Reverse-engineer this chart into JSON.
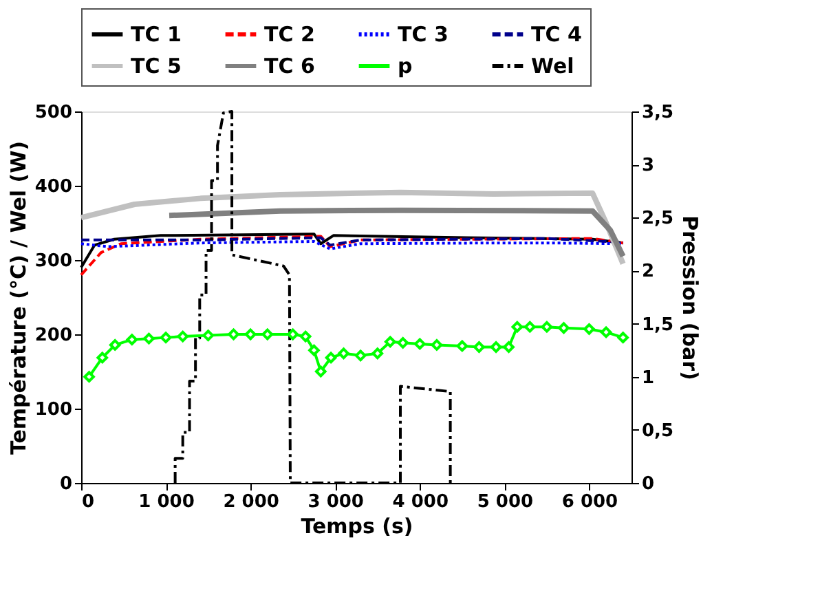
{
  "chart_data": {
    "type": "line",
    "xlabel": "Temps (s)",
    "ylabel": "Température (°C) / Wel (W)",
    "y2label": "Pression (bar)",
    "xlim": [
      0,
      6500
    ],
    "xticks": [
      0,
      {
        "value": 1000,
        "label": "1 000"
      },
      {
        "value": 2000,
        "label": "2 000"
      },
      {
        "value": 3000,
        "label": "3 000"
      },
      {
        "value": 4000,
        "label": "4 000"
      },
      {
        "value": 5000,
        "label": "5 000"
      },
      {
        "value": 6000,
        "label": "6 000"
      }
    ],
    "ylim": [
      0,
      500
    ],
    "yticks": [
      0,
      100,
      200,
      300,
      400,
      500
    ],
    "y2lim": [
      0,
      3.5
    ],
    "y2ticks": [
      0,
      {
        "value": 0.5,
        "label": "0,5"
      },
      1,
      {
        "value": 1.5,
        "label": "1,5"
      },
      2,
      {
        "value": 2.5,
        "label": "2,5"
      },
      3,
      {
        "value": 3.5,
        "label": "3,5"
      }
    ],
    "legend": "top",
    "grid": false,
    "series": [
      {
        "name": "TC 1",
        "color": "#000000",
        "line_style": "solid",
        "x": [
          0,
          157,
          390,
          940,
          2750,
          2830,
          2980,
          4550,
          6040,
          6400
        ],
        "values": [
          290,
          320,
          328,
          333,
          335,
          322,
          333,
          330,
          328,
          323
        ]
      },
      {
        "name": "TC 2",
        "color": "#ff0000",
        "line_style": "dashed",
        "x": [
          0,
          235,
          470,
          1410,
          2830,
          2940,
          3300,
          4550,
          6040,
          6400
        ],
        "values": [
          280,
          310,
          322,
          328,
          332,
          318,
          327,
          328,
          329,
          323
        ]
      },
      {
        "name": "TC 3",
        "color": "#0000ff",
        "line_style": "dotted",
        "x": [
          0,
          314,
          1410,
          2750,
          2940,
          3300,
          4870,
          5500,
          6400
        ],
        "values": [
          322,
          318,
          323,
          325,
          315,
          322,
          323,
          323,
          322
        ]
      },
      {
        "name": "TC 4",
        "color": "#00008b",
        "line_style": "dashed",
        "x": [
          0,
          1410,
          2830,
          2940,
          3300,
          5500,
          6400
        ],
        "values": [
          327,
          327,
          330,
          320,
          327,
          329,
          324
        ]
      },
      {
        "name": "TC 5",
        "color": "#c0c0c0",
        "line_style": "solid",
        "x": [
          0,
          630,
          1410,
          2350,
          3770,
          4870,
          6040,
          6200,
          6400
        ],
        "values": [
          357,
          375,
          383,
          388,
          391,
          389,
          390,
          350,
          295
        ]
      },
      {
        "name": "TC 6",
        "color": "#808080",
        "line_style": "solid",
        "x": [
          1040,
          2350,
          3770,
          6040,
          6250,
          6400
        ],
        "values": [
          360,
          366,
          367,
          366,
          340,
          305
        ]
      },
      {
        "name": "p",
        "color": "#00ff00",
        "line_style": "solid",
        "marker": "diamond",
        "axis": "y2",
        "x": [
          94,
          250,
          400,
          600,
          800,
          1000,
          1200,
          1500,
          1800,
          2000,
          2200,
          2500,
          2650,
          2750,
          2830,
          2950,
          3100,
          3300,
          3500,
          3650,
          3800,
          4000,
          4200,
          4500,
          4700,
          4900,
          5050,
          5150,
          5300,
          5500,
          5700,
          6000,
          6200,
          6400
        ],
        "values": [
          1.0,
          1.18,
          1.3,
          1.35,
          1.36,
          1.37,
          1.38,
          1.39,
          1.4,
          1.4,
          1.4,
          1.4,
          1.38,
          1.25,
          1.05,
          1.18,
          1.22,
          1.2,
          1.22,
          1.33,
          1.32,
          1.31,
          1.3,
          1.29,
          1.28,
          1.28,
          1.28,
          1.47,
          1.47,
          1.47,
          1.46,
          1.45,
          1.42,
          1.37
        ]
      },
      {
        "name": "Wel",
        "color": "#000000",
        "line_style": "dashdot",
        "x": [
          1110,
          1110,
          1200,
          1200,
          1280,
          1280,
          1350,
          1350,
          1400,
          1400,
          1475,
          1475,
          1540,
          1540,
          1610,
          1610,
          1680,
          1780,
          1780,
          2390,
          2460,
          2470,
          3770,
          3770,
          4360,
          4360
        ],
        "values": [
          0,
          33,
          33,
          68,
          68,
          137,
          137,
          195,
          195,
          253,
          253,
          313,
          313,
          407,
          407,
          454,
          498,
          500,
          307,
          292,
          280,
          0,
          0,
          130,
          123,
          0
        ]
      }
    ]
  }
}
